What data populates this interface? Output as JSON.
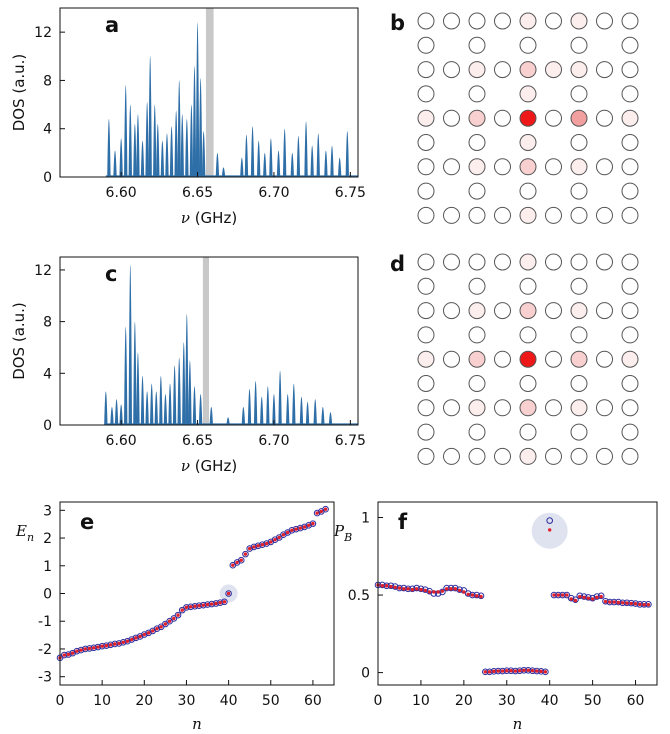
{
  "chart_data": [
    {
      "panel": "a",
      "type": "area",
      "label": "a",
      "xlabel_prefix": "ν",
      "xlabel_suffix": "(GHz)",
      "ylabel": "DOS (a.u.)",
      "xlim": [
        6.56,
        6.755
      ],
      "ylim": [
        0,
        14
      ],
      "xticks": [
        "6.60",
        "6.65",
        "6.70",
        "6.75"
      ],
      "xtick_values": [
        6.6,
        6.65,
        6.7,
        6.75
      ],
      "yticks": [
        "0",
        "4",
        "8",
        "12"
      ],
      "ytick_values": [
        0,
        4,
        8,
        12
      ],
      "fill_color": "#2f6fa8",
      "highlight_band": [
        6.6555,
        6.6605
      ],
      "highlight_color": "#c8c8c8",
      "peaks": [
        [
          6.592,
          4.8
        ],
        [
          6.596,
          2.2
        ],
        [
          6.6,
          3.2
        ],
        [
          6.603,
          7.6
        ],
        [
          6.606,
          6.0
        ],
        [
          6.609,
          4.4
        ],
        [
          6.611,
          5.2
        ],
        [
          6.614,
          3.0
        ],
        [
          6.617,
          6.2
        ],
        [
          6.619,
          10.0
        ],
        [
          6.622,
          6.0
        ],
        [
          6.624,
          4.4
        ],
        [
          6.627,
          3.0
        ],
        [
          6.63,
          3.6
        ],
        [
          6.633,
          4.2
        ],
        [
          6.636,
          5.5
        ],
        [
          6.638,
          8.0
        ],
        [
          6.64,
          5.2
        ],
        [
          6.643,
          4.8
        ],
        [
          6.646,
          6.0
        ],
        [
          6.648,
          9.2
        ],
        [
          6.65,
          12.8
        ],
        [
          6.652,
          8.2
        ],
        [
          6.654,
          3.8
        ],
        [
          6.663,
          2.0
        ],
        [
          6.667,
          0.8
        ],
        [
          6.679,
          1.6
        ],
        [
          6.682,
          3.5
        ],
        [
          6.686,
          4.2
        ],
        [
          6.69,
          3.0
        ],
        [
          6.694,
          2.0
        ],
        [
          6.698,
          3.2
        ],
        [
          6.703,
          2.2
        ],
        [
          6.707,
          4.0
        ],
        [
          6.712,
          2.0
        ],
        [
          6.716,
          3.4
        ],
        [
          6.721,
          4.6
        ],
        [
          6.725,
          2.6
        ],
        [
          6.729,
          3.6
        ],
        [
          6.734,
          2.2
        ],
        [
          6.738,
          2.6
        ],
        [
          6.743,
          1.6
        ],
        [
          6.748,
          3.8
        ]
      ]
    },
    {
      "panel": "c",
      "type": "area",
      "label": "c",
      "xlabel_prefix": "ν",
      "xlabel_suffix": "(GHz)",
      "ylabel": "DOS (a.u.)",
      "xlim": [
        6.56,
        6.755
      ],
      "ylim": [
        0,
        13
      ],
      "xticks": [
        "6.60",
        "6.65",
        "6.70",
        "6.75"
      ],
      "xtick_values": [
        6.6,
        6.65,
        6.7,
        6.75
      ],
      "yticks": [
        "0",
        "4",
        "8",
        "12"
      ],
      "ytick_values": [
        0,
        4,
        8,
        12
      ],
      "fill_color": "#2f6fa8",
      "highlight_band": [
        6.6535,
        6.6575
      ],
      "highlight_color": "#c8c8c8",
      "peaks": [
        [
          6.59,
          2.6
        ],
        [
          6.594,
          1.4
        ],
        [
          6.597,
          2.0
        ],
        [
          6.6,
          1.6
        ],
        [
          6.603,
          7.6
        ],
        [
          6.606,
          12.4
        ],
        [
          6.609,
          8.0
        ],
        [
          6.611,
          5.6
        ],
        [
          6.614,
          3.8
        ],
        [
          6.617,
          2.6
        ],
        [
          6.62,
          3.2
        ],
        [
          6.623,
          2.6
        ],
        [
          6.626,
          3.8
        ],
        [
          6.629,
          2.4
        ],
        [
          6.632,
          3.2
        ],
        [
          6.635,
          4.6
        ],
        [
          6.638,
          5.2
        ],
        [
          6.641,
          6.4
        ],
        [
          6.643,
          8.6
        ],
        [
          6.645,
          5.0
        ],
        [
          6.648,
          3.0
        ],
        [
          6.652,
          2.4
        ],
        [
          6.659,
          1.4
        ],
        [
          6.67,
          0.6
        ],
        [
          6.68,
          1.4
        ],
        [
          6.684,
          2.8
        ],
        [
          6.688,
          3.4
        ],
        [
          6.692,
          2.2
        ],
        [
          6.696,
          3.0
        ],
        [
          6.7,
          2.4
        ],
        [
          6.704,
          4.2
        ],
        [
          6.709,
          2.4
        ],
        [
          6.713,
          3.2
        ],
        [
          6.718,
          2.2
        ],
        [
          6.722,
          1.8
        ],
        [
          6.727,
          2.0
        ],
        [
          6.732,
          1.4
        ],
        [
          6.737,
          1.0
        ]
      ]
    },
    {
      "panel": "e",
      "type": "scatter",
      "label": "e",
      "ylabel": "E",
      "ylabel_sub": "n",
      "xlabel": "n",
      "xlim": [
        0,
        65
      ],
      "ylim": [
        -3.3,
        3.3
      ],
      "xticks": [
        "0",
        "10",
        "20",
        "30",
        "40",
        "50",
        "60"
      ],
      "xtick_values": [
        0,
        10,
        20,
        30,
        40,
        50,
        60
      ],
      "yticks": [
        "-3",
        "-2",
        "-1",
        "0",
        "1",
        "2",
        "3"
      ],
      "ytick_values": [
        -3,
        -2,
        -1,
        0,
        1,
        2,
        3
      ],
      "highlight_point": [
        40,
        0
      ],
      "series": [
        {
          "color": "#2b2d9e",
          "marker": "open-circle",
          "values": [
            -2.32,
            -2.22,
            -2.2,
            -2.15,
            -2.08,
            -2.04,
            -2.0,
            -1.98,
            -1.96,
            -1.93,
            -1.9,
            -1.88,
            -1.85,
            -1.82,
            -1.8,
            -1.76,
            -1.72,
            -1.66,
            -1.6,
            -1.55,
            -1.48,
            -1.42,
            -1.35,
            -1.27,
            -1.2,
            -1.1,
            -1.0,
            -0.9,
            -0.78,
            -0.6,
            -0.5,
            -0.48,
            -0.46,
            -0.44,
            -0.42,
            -0.4,
            -0.38,
            -0.36,
            -0.33,
            -0.3,
            0.0,
            1.02,
            1.12,
            1.2,
            1.42,
            1.62,
            1.68,
            1.72,
            1.76,
            1.8,
            1.86,
            1.94,
            2.02,
            2.12,
            2.2,
            2.28,
            2.32,
            2.36,
            2.4,
            2.46,
            2.52,
            2.9,
            2.96,
            3.04
          ]
        },
        {
          "color": "#e0202a",
          "marker": "filled-dot",
          "values": [
            -2.32,
            -2.22,
            -2.2,
            -2.15,
            -2.08,
            -2.04,
            -2.0,
            -1.98,
            -1.96,
            -1.93,
            -1.9,
            -1.88,
            -1.85,
            -1.82,
            -1.8,
            -1.76,
            -1.72,
            -1.66,
            -1.6,
            -1.55,
            -1.48,
            -1.42,
            -1.35,
            -1.27,
            -1.2,
            -1.1,
            -1.0,
            -0.9,
            -0.78,
            -0.6,
            -0.5,
            -0.48,
            -0.46,
            -0.44,
            -0.42,
            -0.4,
            -0.38,
            -0.36,
            -0.33,
            -0.3,
            0.0,
            1.02,
            1.12,
            1.2,
            1.42,
            1.62,
            1.68,
            1.72,
            1.76,
            1.8,
            1.86,
            1.94,
            2.02,
            2.12,
            2.2,
            2.28,
            2.32,
            2.36,
            2.4,
            2.46,
            2.52,
            2.9,
            2.96,
            3.04
          ]
        }
      ]
    },
    {
      "panel": "f",
      "type": "scatter",
      "label": "f",
      "ylabel": "P",
      "ylabel_sub": "B",
      "xlabel": "n",
      "xlim": [
        0,
        65
      ],
      "ylim": [
        -0.08,
        1.1
      ],
      "xticks": [
        "0",
        "10",
        "20",
        "30",
        "40",
        "50",
        "60"
      ],
      "xtick_values": [
        0,
        10,
        20,
        30,
        40,
        50,
        60
      ],
      "yticks": [
        "0",
        "0.5",
        "1"
      ],
      "ytick_values": [
        0,
        0.5,
        1
      ],
      "highlight_point": [
        40,
        0.915
      ],
      "series": [
        {
          "color": "#2b2d9e",
          "marker": "open-circle",
          "values": [
            0.565,
            0.565,
            0.56,
            0.56,
            0.555,
            0.545,
            0.545,
            0.54,
            0.54,
            0.545,
            0.54,
            0.535,
            0.525,
            0.51,
            0.51,
            0.52,
            0.545,
            0.545,
            0.545,
            0.535,
            0.53,
            0.51,
            0.5,
            0.5,
            0.495,
            0.005,
            0.005,
            0.008,
            0.01,
            0.01,
            0.012,
            0.012,
            0.01,
            0.012,
            0.015,
            0.015,
            0.012,
            0.01,
            0.008,
            0.005,
            0.98,
            0.5,
            0.5,
            0.5,
            0.5,
            0.48,
            0.47,
            0.495,
            0.49,
            0.485,
            0.48,
            0.49,
            0.495,
            0.46,
            0.455,
            0.455,
            0.455,
            0.45,
            0.45,
            0.448,
            0.445,
            0.44,
            0.44,
            0.44
          ]
        },
        {
          "color": "#e0202a",
          "marker": "filled-dot",
          "values": [
            0.565,
            0.56,
            0.56,
            0.555,
            0.55,
            0.545,
            0.54,
            0.54,
            0.535,
            0.54,
            0.535,
            0.53,
            0.52,
            0.52,
            0.52,
            0.525,
            0.54,
            0.54,
            0.54,
            0.53,
            0.52,
            0.505,
            0.5,
            0.495,
            0.49,
            0.005,
            0.005,
            0.008,
            0.01,
            0.01,
            0.012,
            0.012,
            0.01,
            0.012,
            0.015,
            0.015,
            0.012,
            0.01,
            0.008,
            0.005,
            0.92,
            0.5,
            0.5,
            0.5,
            0.5,
            0.475,
            0.465,
            0.49,
            0.485,
            0.48,
            0.475,
            0.485,
            0.49,
            0.458,
            0.455,
            0.455,
            0.452,
            0.45,
            0.448,
            0.446,
            0.444,
            0.44,
            0.438,
            0.438
          ]
        }
      ]
    },
    {
      "panel": "b",
      "type": "lattice",
      "label": "b",
      "columns": 9,
      "rows": 9,
      "row_kind": [
        "full",
        "sparse",
        "full",
        "sparse",
        "full",
        "sparse",
        "full",
        "sparse",
        "full"
      ],
      "sparse_columns": [
        0,
        2,
        4,
        6,
        8
      ],
      "site_colors": {
        "c0": "#ffffff",
        "c1": "#fdeeee",
        "c2": "#f9d0d0",
        "c3": "#f29f9f",
        "c4": "#ee1818"
      },
      "intensity": [
        [
          "c0",
          "c0",
          "c0",
          "c0",
          "c1",
          "c0",
          "c1",
          "c0",
          "c0"
        ],
        [
          "c0",
          "c0",
          "c0",
          "c0",
          "c0"
        ],
        [
          "c0",
          "c0",
          "c1",
          "c0",
          "c2",
          "c1",
          "c1",
          "c0",
          "c0"
        ],
        [
          "c0",
          "c0",
          "c1",
          "c0",
          "c0"
        ],
        [
          "c1",
          "c0",
          "c2",
          "c0",
          "c4",
          "c0",
          "c3",
          "c0",
          "c1"
        ],
        [
          "c0",
          "c0",
          "c1",
          "c0",
          "c0"
        ],
        [
          "c0",
          "c0",
          "c1",
          "c0",
          "c2",
          "c0",
          "c1",
          "c0",
          "c0"
        ],
        [
          "c0",
          "c0",
          "c0",
          "c0",
          "c0"
        ],
        [
          "c0",
          "c0",
          "c0",
          "c0",
          "c1",
          "c0",
          "c0",
          "c0",
          "c0"
        ]
      ]
    },
    {
      "panel": "d",
      "type": "lattice",
      "label": "d",
      "columns": 9,
      "rows": 9,
      "row_kind": [
        "full",
        "sparse",
        "full",
        "sparse",
        "full",
        "sparse",
        "full",
        "sparse",
        "full"
      ],
      "sparse_columns": [
        0,
        2,
        4,
        6,
        8
      ],
      "site_colors": {
        "c0": "#ffffff",
        "c1": "#fdeeee",
        "c2": "#f9d0d0",
        "c3": "#f29f9f",
        "c4": "#ee1818"
      },
      "intensity": [
        [
          "c0",
          "c0",
          "c0",
          "c0",
          "c1",
          "c0",
          "c0",
          "c0",
          "c0"
        ],
        [
          "c0",
          "c0",
          "c0",
          "c0",
          "c0"
        ],
        [
          "c0",
          "c0",
          "c1",
          "c0",
          "c2",
          "c0",
          "c1",
          "c0",
          "c0"
        ],
        [
          "c0",
          "c0",
          "c0",
          "c0",
          "c0"
        ],
        [
          "c1",
          "c0",
          "c2",
          "c0",
          "c4",
          "c0",
          "c2",
          "c0",
          "c1"
        ],
        [
          "c0",
          "c0",
          "c0",
          "c0",
          "c0"
        ],
        [
          "c0",
          "c0",
          "c1",
          "c0",
          "c2",
          "c0",
          "c1",
          "c0",
          "c0"
        ],
        [
          "c0",
          "c0",
          "c0",
          "c0",
          "c0"
        ],
        [
          "c0",
          "c0",
          "c0",
          "c0",
          "c1",
          "c0",
          "c0",
          "c0",
          "c0"
        ]
      ]
    }
  ]
}
